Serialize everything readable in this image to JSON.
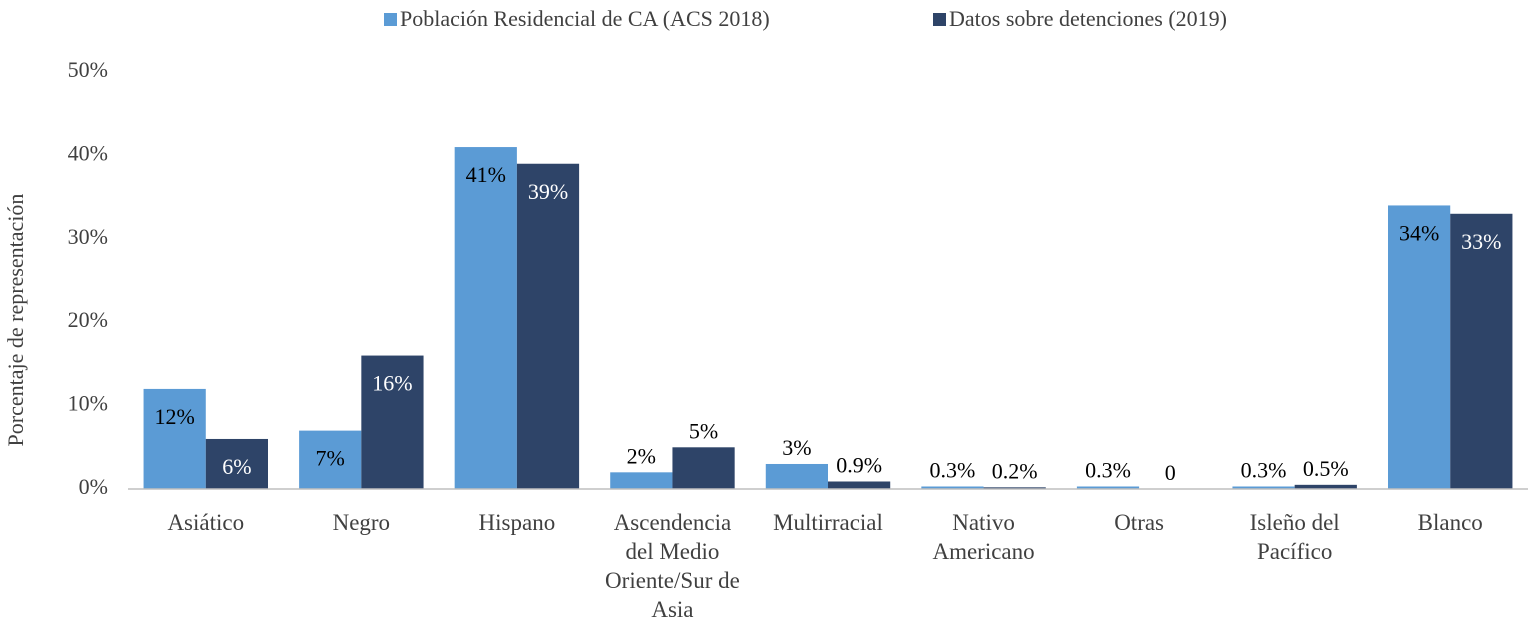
{
  "chart_data": {
    "type": "bar",
    "y_label": "Porcentaje de representación",
    "categories": [
      "Asiático",
      "Negro",
      "Hispano",
      "Ascendencia del Medio Oriente/Sur de Asia",
      "Multirracial",
      "Nativo Americano",
      "Otras",
      "Isleño del Pacífico",
      "Blanco"
    ],
    "series": [
      {
        "name": "Población Residencial de CA (ACS 2018)",
        "color": "#5b9bd5",
        "values": [
          12,
          7,
          41,
          2,
          3,
          0.3,
          0.3,
          0.3,
          34
        ],
        "value_labels": [
          "12%",
          "7%",
          "41%",
          "2%",
          "3%",
          "0.3%",
          "0.3%",
          "0.3%",
          "34%"
        ]
      },
      {
        "name": "Datos sobre detenciones (2019)",
        "color": "#2e4468",
        "values": [
          6,
          16,
          39,
          5,
          0.9,
          0.2,
          0,
          0.5,
          33
        ],
        "value_labels": [
          "6%",
          "16%",
          "39%",
          "5%",
          "0.9%",
          "0.2%",
          "0",
          "0.5%",
          "33%"
        ]
      }
    ],
    "ylim": [
      0,
      50
    ],
    "yticks": [
      {
        "value": 0,
        "label": "0%"
      },
      {
        "value": 10,
        "label": "10%"
      },
      {
        "value": 20,
        "label": "20%"
      },
      {
        "value": 30,
        "label": "30%"
      },
      {
        "value": 40,
        "label": "40%"
      },
      {
        "value": 50,
        "label": "50%"
      }
    ],
    "legend": "top",
    "grid": false
  }
}
